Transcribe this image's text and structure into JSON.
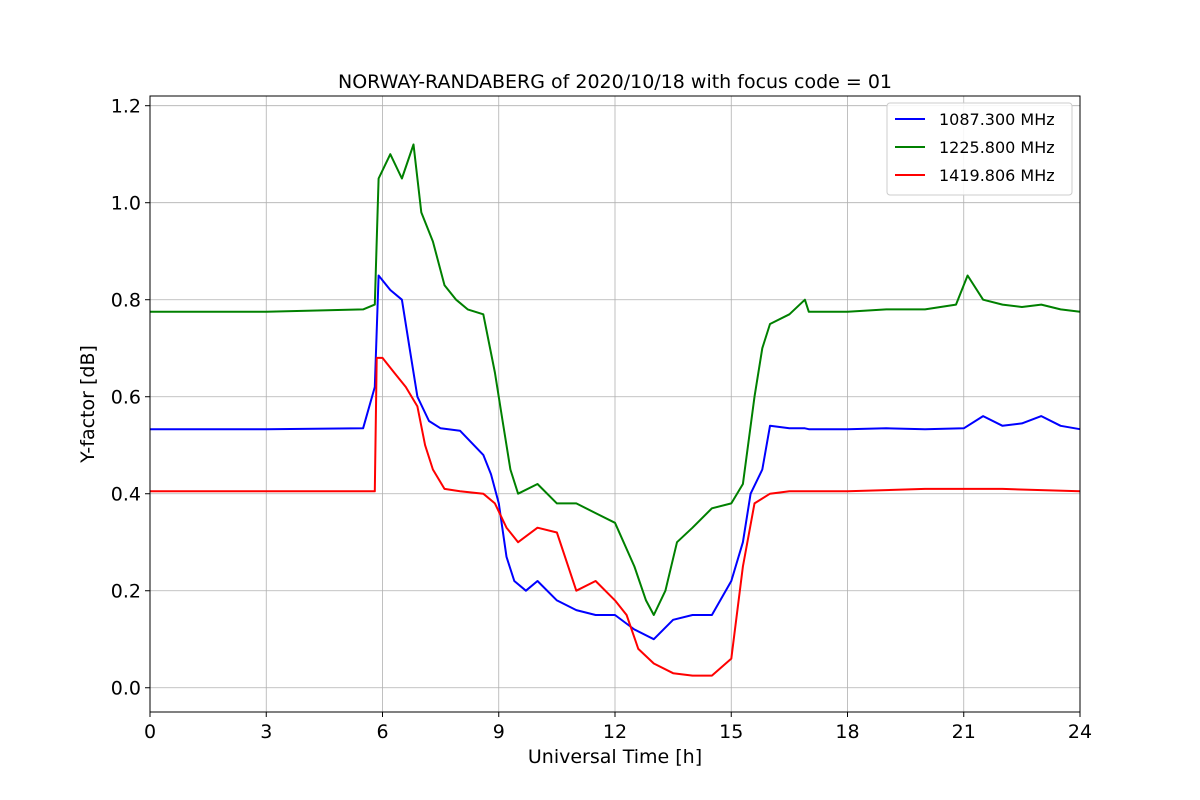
{
  "chart_data": {
    "type": "line",
    "title": "NORWAY-RANDABERG of 2020/10/18 with focus code = 01",
    "xlabel": "Universal Time [h]",
    "ylabel": "Y-factor [dB]",
    "xlim": [
      0,
      24
    ],
    "ylim": [
      -0.05,
      1.22
    ],
    "xticks": [
      0,
      3,
      6,
      9,
      12,
      15,
      18,
      21,
      24
    ],
    "xtick_labels": [
      "0",
      "3",
      "6",
      "9",
      "12",
      "15",
      "18",
      "21",
      "24"
    ],
    "yticks": [
      0.0,
      0.2,
      0.4,
      0.6,
      0.8,
      1.0,
      1.2
    ],
    "ytick_labels": [
      "0.0",
      "0.2",
      "0.4",
      "0.6",
      "0.8",
      "1.0",
      "1.2"
    ],
    "grid": true,
    "legend_position": "top-right",
    "series": [
      {
        "name": "1087.300 MHz",
        "color": "#0000ff",
        "x": [
          0,
          3,
          5.5,
          5.8,
          5.9,
          6.2,
          6.5,
          6.7,
          6.9,
          7.2,
          7.5,
          8.0,
          8.6,
          8.8,
          9.0,
          9.2,
          9.4,
          9.7,
          10.0,
          10.5,
          11.0,
          11.5,
          12.0,
          12.5,
          13.0,
          13.5,
          14.0,
          14.5,
          15.0,
          15.3,
          15.5,
          15.8,
          16.0,
          16.5,
          16.9,
          17.0,
          17.5,
          18.0,
          19.0,
          20.0,
          21.0,
          21.5,
          22.0,
          22.5,
          23.0,
          23.5,
          24.0
        ],
        "y": [
          0.533,
          0.533,
          0.535,
          0.62,
          0.85,
          0.82,
          0.8,
          0.7,
          0.6,
          0.55,
          0.535,
          0.53,
          0.48,
          0.44,
          0.38,
          0.27,
          0.22,
          0.2,
          0.22,
          0.18,
          0.16,
          0.15,
          0.15,
          0.12,
          0.1,
          0.14,
          0.15,
          0.15,
          0.22,
          0.3,
          0.4,
          0.45,
          0.54,
          0.535,
          0.535,
          0.533,
          0.533,
          0.533,
          0.535,
          0.533,
          0.535,
          0.56,
          0.54,
          0.545,
          0.56,
          0.54,
          0.533
        ]
      },
      {
        "name": "1225.800 MHz",
        "color": "#008000",
        "x": [
          0,
          3,
          5.5,
          5.8,
          5.9,
          6.2,
          6.5,
          6.8,
          7.0,
          7.3,
          7.6,
          7.9,
          8.2,
          8.6,
          8.9,
          9.1,
          9.3,
          9.5,
          10.0,
          10.5,
          11.0,
          11.5,
          12.0,
          12.5,
          12.8,
          13.0,
          13.3,
          13.6,
          14.0,
          14.5,
          15.0,
          15.3,
          15.6,
          15.8,
          16.0,
          16.5,
          16.9,
          17.0,
          17.5,
          18.0,
          19.0,
          20.0,
          20.8,
          21.1,
          21.5,
          22.0,
          22.5,
          23.0,
          23.5,
          24.0
        ],
        "y": [
          0.775,
          0.775,
          0.78,
          0.79,
          1.05,
          1.1,
          1.05,
          1.12,
          0.98,
          0.92,
          0.83,
          0.8,
          0.78,
          0.77,
          0.65,
          0.55,
          0.45,
          0.4,
          0.42,
          0.38,
          0.38,
          0.36,
          0.34,
          0.25,
          0.18,
          0.15,
          0.2,
          0.3,
          0.33,
          0.37,
          0.38,
          0.42,
          0.6,
          0.7,
          0.75,
          0.77,
          0.8,
          0.775,
          0.775,
          0.775,
          0.78,
          0.78,
          0.79,
          0.85,
          0.8,
          0.79,
          0.785,
          0.79,
          0.78,
          0.775
        ]
      },
      {
        "name": "1419.806 MHz",
        "color": "#ff0000",
        "x": [
          0,
          3,
          5.8,
          5.85,
          6.0,
          6.3,
          6.6,
          6.9,
          7.1,
          7.3,
          7.6,
          8.0,
          8.6,
          8.9,
          9.2,
          9.5,
          10.0,
          10.5,
          11.0,
          11.5,
          12.0,
          12.3,
          12.6,
          13.0,
          13.5,
          14.0,
          14.5,
          15.0,
          15.3,
          15.6,
          16.0,
          16.5,
          17.0,
          18.0,
          20.0,
          22.0,
          24.0
        ],
        "y": [
          0.405,
          0.405,
          0.405,
          0.68,
          0.68,
          0.65,
          0.62,
          0.58,
          0.5,
          0.45,
          0.41,
          0.405,
          0.4,
          0.38,
          0.33,
          0.3,
          0.33,
          0.32,
          0.2,
          0.22,
          0.18,
          0.15,
          0.08,
          0.05,
          0.03,
          0.025,
          0.025,
          0.06,
          0.25,
          0.38,
          0.4,
          0.405,
          0.405,
          0.405,
          0.41,
          0.41,
          0.405
        ]
      }
    ]
  }
}
